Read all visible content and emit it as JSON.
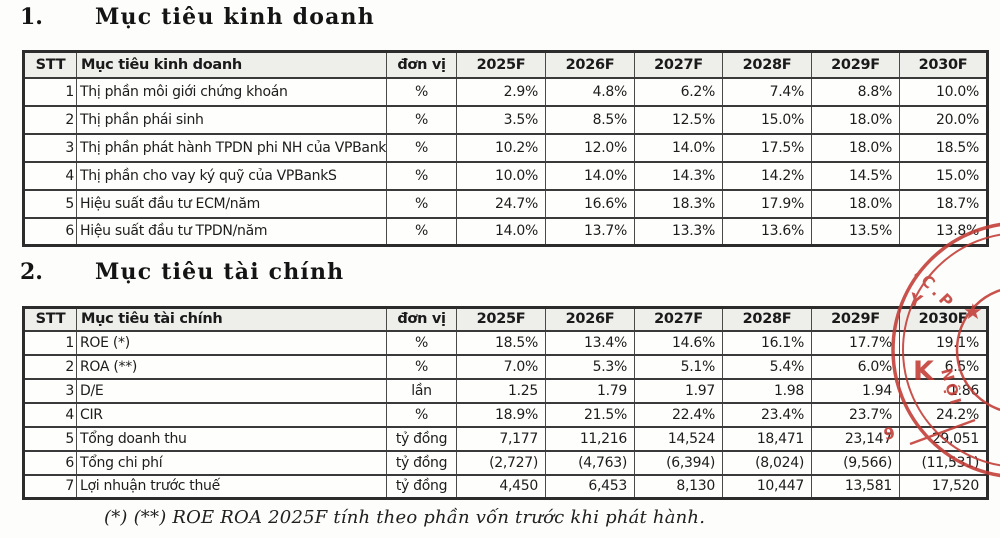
{
  "section1": {
    "number": "1.",
    "title": "Mục tiêu kinh doanh"
  },
  "section2": {
    "number": "2.",
    "title": "Mục tiêu tài chính"
  },
  "table1": {
    "headers": {
      "stt": "STT",
      "name": "Mục tiêu kinh doanh",
      "unit": "đơn vị",
      "years": [
        "2025F",
        "2026F",
        "2027F",
        "2028F",
        "2029F",
        "2030F"
      ]
    },
    "rows": [
      {
        "stt": "1",
        "name": "Thị phần môi giới chứng khoán",
        "unit": "%",
        "values": [
          "2.9%",
          "4.8%",
          "6.2%",
          "7.4%",
          "8.8%",
          "10.0%"
        ]
      },
      {
        "stt": "2",
        "name": "Thị phần phái sinh",
        "unit": "%",
        "values": [
          "3.5%",
          "8.5%",
          "12.5%",
          "15.0%",
          "18.0%",
          "20.0%"
        ]
      },
      {
        "stt": "3",
        "name": "Thị phần phát hành TPDN phi NH của VPBankS",
        "unit": "%",
        "values": [
          "10.2%",
          "12.0%",
          "14.0%",
          "17.5%",
          "18.0%",
          "18.5%"
        ]
      },
      {
        "stt": "4",
        "name": "Thị phần cho vay ký quỹ của VPBankS",
        "unit": "%",
        "values": [
          "10.0%",
          "14.0%",
          "14.3%",
          "14.2%",
          "14.5%",
          "15.0%"
        ]
      },
      {
        "stt": "5",
        "name": "Hiệu suất đầu tư ECM/năm",
        "unit": "%",
        "values": [
          "24.7%",
          "16.6%",
          "18.3%",
          "17.9%",
          "18.0%",
          "18.7%"
        ]
      },
      {
        "stt": "6",
        "name": "Hiệu suất đầu tư TPDN/năm",
        "unit": "%",
        "values": [
          "14.0%",
          "13.7%",
          "13.3%",
          "13.6%",
          "13.5%",
          "13.8%"
        ]
      }
    ]
  },
  "table2": {
    "headers": {
      "stt": "STT",
      "name": "Mục tiêu tài chính",
      "unit": "đơn vị",
      "years": [
        "2025F",
        "2026F",
        "2027F",
        "2028F",
        "2029F",
        "2030F"
      ]
    },
    "rows": [
      {
        "stt": "1",
        "name": "ROE (*)",
        "unit": "%",
        "values": [
          "18.5%",
          "13.4%",
          "14.6%",
          "16.1%",
          "17.7%",
          "19.1%"
        ]
      },
      {
        "stt": "2",
        "name": "ROA (**)",
        "unit": "%",
        "values": [
          "7.0%",
          "5.3%",
          "5.1%",
          "5.4%",
          "6.0%",
          "6.5%"
        ]
      },
      {
        "stt": "3",
        "name": "D/E",
        "unit": "lần",
        "values": [
          "1.25",
          "1.79",
          "1.97",
          "1.98",
          "1.94",
          "1.86"
        ]
      },
      {
        "stt": "4",
        "name": "CIR",
        "unit": "%",
        "values": [
          "18.9%",
          "21.5%",
          "22.4%",
          "23.4%",
          "23.7%",
          "24.2%"
        ]
      },
      {
        "stt": "5",
        "name": "Tổng doanh thu",
        "unit": "tỷ đồng",
        "values": [
          "7,177",
          "11,216",
          "14,524",
          "18,471",
          "23,147",
          "29,051"
        ]
      },
      {
        "stt": "6",
        "name": "Tổng chi phí",
        "unit": "tỷ đồng",
        "values": [
          "(2,727)",
          "(4,763)",
          "(6,394)",
          "(8,024)",
          "(9,566)",
          "(11,531)"
        ]
      },
      {
        "stt": "7",
        "name": "Lợi nhuận trước thuế",
        "unit": "tỷ đồng",
        "values": [
          "4,450",
          "6,453",
          "8,130",
          "10,447",
          "13,581",
          "17,520"
        ]
      }
    ]
  },
  "footnote": "(*) (**) ROE ROA 2025F tính theo phần vốn trước khi phát hành.",
  "stamp": {
    "color": "#c23b34",
    "arc_text_top": ".C.P",
    "letter_y": "Y",
    "star": "★",
    "side_text": "NỘI",
    "letter_k": "K",
    "letter_9": "9"
  }
}
